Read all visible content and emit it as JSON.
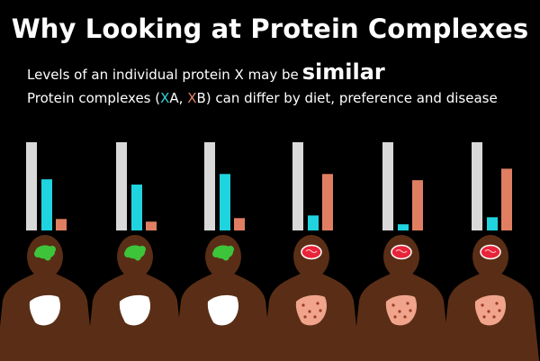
{
  "header": {
    "title": "Why Looking at Protein Complexes",
    "line1_text": "Levels of an individual protein X may be",
    "line1_emphasis": "similar",
    "line2_pre": "Protein complexes  (",
    "line2_x1": "X",
    "line2_a": "A, ",
    "line2_x2": "X",
    "line2_b": "B) can differ by diet, preference and disease"
  },
  "colors": {
    "background": "#000000",
    "bar_protein_x": "#d9d9d9",
    "bar_complex_a": "#1fd3df",
    "bar_complex_b": "#e07e62",
    "body": "#5a2e16",
    "brain_healthy": "#3ec43a",
    "brain_diseased": "#e8243a",
    "liver_healthy": "#ffffff",
    "liver_diseased": "#f0a48c"
  },
  "panels": [
    {
      "state": "healthy",
      "bar_levels": [
        1.0,
        0.58,
        0.13
      ]
    },
    {
      "state": "healthy",
      "bar_levels": [
        1.0,
        0.52,
        0.1
      ]
    },
    {
      "state": "healthy",
      "bar_levels": [
        1.0,
        0.64,
        0.14
      ]
    },
    {
      "state": "diseased",
      "bar_levels": [
        1.0,
        0.17,
        0.64
      ]
    },
    {
      "state": "diseased",
      "bar_levels": [
        1.0,
        0.07,
        0.57
      ]
    },
    {
      "state": "diseased",
      "bar_levels": [
        1.0,
        0.15,
        0.7
      ]
    }
  ]
}
